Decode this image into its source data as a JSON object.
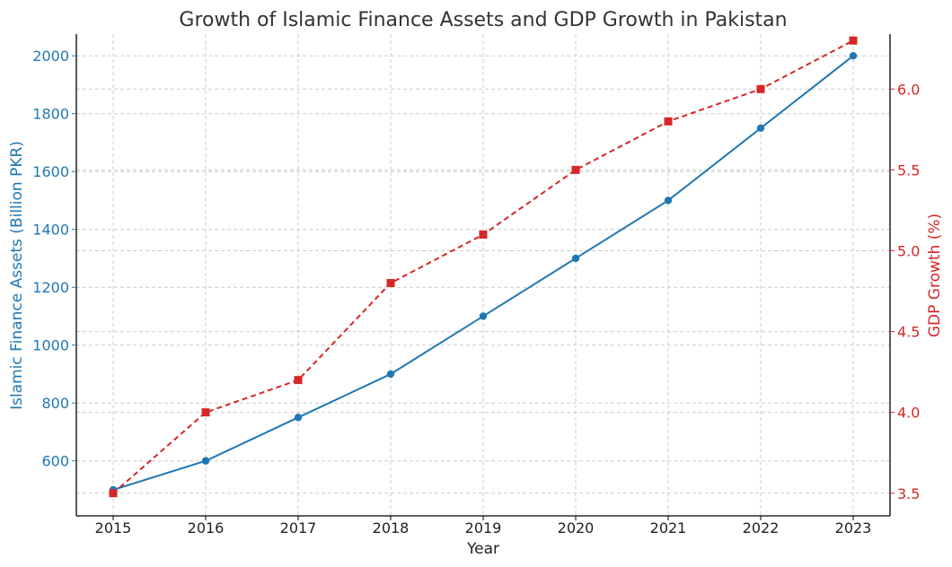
{
  "chart_data": {
    "type": "line",
    "title": "Growth of Islamic Finance Assets and GDP Growth in Pakistan",
    "xlabel": "Year",
    "ylabel_left": "Islamic Finance Assets (Billion PKR)",
    "ylabel_right": "GDP Growth (%)",
    "x": [
      2015,
      2016,
      2017,
      2018,
      2019,
      2020,
      2021,
      2022,
      2023
    ],
    "x_ticks": [
      "2015",
      "2016",
      "2017",
      "2018",
      "2019",
      "2020",
      "2021",
      "2022",
      "2023"
    ],
    "y_left_ticks": [
      "600",
      "800",
      "1000",
      "1200",
      "1400",
      "1600",
      "1800",
      "2000"
    ],
    "y_right_ticks": [
      "3.5",
      "4.0",
      "4.5",
      "5.0",
      "5.5",
      "6.0"
    ],
    "ylim_left": [
      410,
      2075
    ],
    "ylim_right": [
      3.36,
      6.34
    ],
    "grid": true,
    "series": [
      {
        "axis": "left",
        "values": [
          500,
          600,
          750,
          900,
          1100,
          1300,
          1500,
          1750,
          2000
        ],
        "color": "#1f77b4",
        "line_style": "solid",
        "marker": "circle"
      },
      {
        "axis": "right",
        "values": [
          3.5,
          4.0,
          4.2,
          4.8,
          5.1,
          5.5,
          5.8,
          6.0,
          6.3
        ],
        "color": "#d62728",
        "line_style": "dashed",
        "marker": "square"
      }
    ]
  }
}
